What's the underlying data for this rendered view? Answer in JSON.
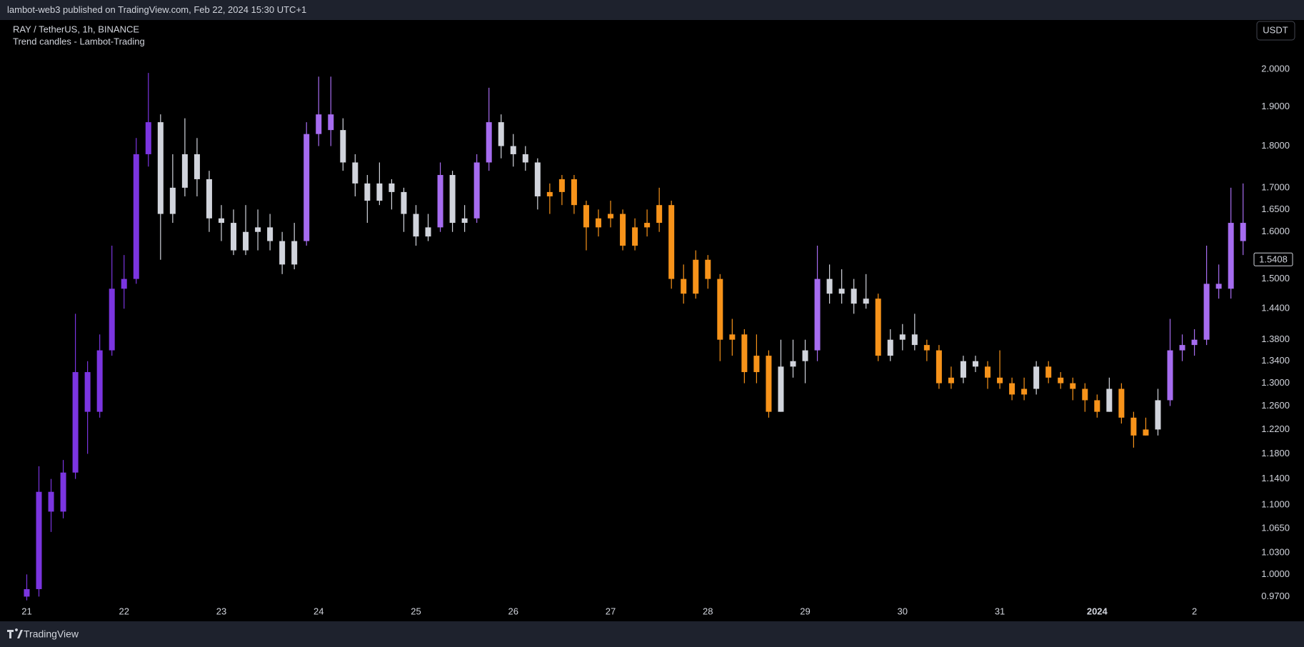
{
  "header": {
    "published": "lambot-web3 published on TradingView.com, Feb 22, 2024 15:30 UTC+1",
    "currency": "USDT"
  },
  "footer": {
    "brand": "TradingView"
  },
  "chart_data": {
    "type": "candlestick",
    "title": "RAY / TetherUS, 1h, BINANCE",
    "subtitle": "Trend candles - Lambot-Trading",
    "log": true,
    "grid": false,
    "xlim": [
      -6.6,
      303.4
    ],
    "xticks": [
      {
        "value": 0,
        "label": "21"
      },
      {
        "value": 24,
        "label": "22"
      },
      {
        "value": 48,
        "label": "23"
      },
      {
        "value": 72,
        "label": "24"
      },
      {
        "value": 96,
        "label": "25"
      },
      {
        "value": 120,
        "label": "26"
      },
      {
        "value": 144,
        "label": "27"
      },
      {
        "value": 168,
        "label": "28"
      },
      {
        "value": 192,
        "label": "29"
      },
      {
        "value": 216,
        "label": "30"
      },
      {
        "value": 240,
        "label": "31"
      },
      {
        "value": 264,
        "label": "2024"
      },
      {
        "value": 288,
        "label": "2"
      }
    ],
    "ylim": [
      0.96,
      2.14
    ],
    "yticks": [
      {
        "value": 2,
        "label": "2.0000"
      },
      {
        "value": 1.9,
        "label": "1.9000"
      },
      {
        "value": 1.8,
        "label": "1.8000"
      },
      {
        "value": 1.7,
        "label": "1.7000"
      },
      {
        "value": 1.65,
        "label": "1.6500"
      },
      {
        "value": 1.6,
        "label": "1.6000"
      },
      {
        "value": 1.5,
        "label": "1.5000"
      },
      {
        "value": 1.44,
        "label": "1.4400"
      },
      {
        "value": 1.38,
        "label": "1.3800"
      },
      {
        "value": 1.34,
        "label": "1.3400"
      },
      {
        "value": 1.3,
        "label": "1.3000"
      },
      {
        "value": 1.26,
        "label": "1.2600"
      },
      {
        "value": 1.22,
        "label": "1.2200"
      },
      {
        "value": 1.18,
        "label": "1.1800"
      },
      {
        "value": 1.14,
        "label": "1.1400"
      },
      {
        "value": 1.1,
        "label": "1.1000"
      },
      {
        "value": 1.065,
        "label": "1.0650"
      },
      {
        "value": 1.03,
        "label": "1.0300"
      },
      {
        "value": 1,
        "label": "1.0000"
      },
      {
        "value": 0.97,
        "label": "0.9700"
      }
    ],
    "last_price": 1.5408,
    "x": [
      0,
      3,
      6,
      9,
      12,
      15,
      18,
      21,
      24,
      27,
      30,
      33,
      36,
      39,
      42,
      45,
      48,
      51,
      54,
      57,
      60,
      63,
      66,
      69,
      72,
      75,
      78,
      81,
      84,
      87,
      90,
      93,
      96,
      99,
      102,
      105,
      108,
      111,
      114,
      117,
      120,
      123,
      126,
      129,
      132,
      135,
      138,
      141,
      144,
      147,
      150,
      153,
      156,
      159,
      162,
      165,
      168,
      171,
      174,
      177,
      180,
      183,
      186,
      189,
      192,
      195,
      198,
      201,
      204,
      207,
      210,
      213,
      216,
      219,
      222,
      225,
      228,
      231,
      234,
      237,
      240,
      243,
      246,
      249,
      252,
      255,
      258,
      261,
      264,
      267,
      270,
      273,
      276,
      279,
      282,
      285,
      288,
      291,
      294,
      297,
      300
    ],
    "open": [
      0.97,
      0.98,
      1.12,
      1.09,
      1.15,
      1.32,
      1.25,
      1.36,
      1.48,
      1.5,
      1.78,
      1.86,
      1.64,
      1.7,
      1.78,
      1.72,
      1.63,
      1.62,
      1.56,
      1.6,
      1.61,
      1.58,
      1.53,
      1.58,
      1.83,
      1.88,
      1.84,
      1.76,
      1.71,
      1.67,
      1.71,
      1.69,
      1.64,
      1.59,
      1.61,
      1.73,
      1.62,
      1.63,
      1.76,
      1.86,
      1.8,
      1.78,
      1.76,
      1.68,
      1.69,
      1.72,
      1.66,
      1.61,
      1.63,
      1.64,
      1.57,
      1.61,
      1.62,
      1.66,
      1.5,
      1.47,
      1.54,
      1.5,
      1.38,
      1.39,
      1.32,
      1.35,
      1.25,
      1.33,
      1.34,
      1.36,
      1.5,
      1.47,
      1.48,
      1.45,
      1.46,
      1.35,
      1.38,
      1.39,
      1.37,
      1.36,
      1.3,
      1.31,
      1.34,
      1.33,
      1.31,
      1.3,
      1.28,
      1.29,
      1.33,
      1.31,
      1.3,
      1.29,
      1.27,
      1.25,
      1.29,
      1.24,
      1.21,
      1.22,
      1.27,
      1.36,
      1.37,
      1.38,
      1.49,
      1.48,
      1.62
    ],
    "high": [
      1.0,
      1.16,
      1.14,
      1.17,
      1.43,
      1.34,
      1.39,
      1.57,
      1.55,
      1.82,
      1.99,
      1.88,
      1.78,
      1.87,
      1.82,
      1.74,
      1.66,
      1.65,
      1.66,
      1.65,
      1.64,
      1.6,
      1.62,
      1.86,
      1.98,
      1.98,
      1.87,
      1.78,
      1.73,
      1.76,
      1.72,
      1.7,
      1.66,
      1.64,
      1.76,
      1.74,
      1.66,
      1.78,
      1.95,
      1.88,
      1.83,
      1.8,
      1.77,
      1.71,
      1.73,
      1.73,
      1.67,
      1.65,
      1.67,
      1.65,
      1.63,
      1.65,
      1.7,
      1.67,
      1.53,
      1.56,
      1.55,
      1.51,
      1.42,
      1.4,
      1.39,
      1.36,
      1.38,
      1.38,
      1.38,
      1.57,
      1.53,
      1.52,
      1.5,
      1.51,
      1.47,
      1.4,
      1.41,
      1.43,
      1.38,
      1.37,
      1.33,
      1.35,
      1.35,
      1.34,
      1.36,
      1.31,
      1.31,
      1.34,
      1.34,
      1.32,
      1.31,
      1.3,
      1.28,
      1.31,
      1.3,
      1.25,
      1.24,
      1.29,
      1.42,
      1.39,
      1.4,
      1.57,
      1.53,
      1.7,
      1.71
    ],
    "low": [
      0.965,
      0.97,
      1.06,
      1.08,
      1.14,
      1.18,
      1.24,
      1.35,
      1.44,
      1.49,
      1.75,
      1.54,
      1.62,
      1.68,
      1.68,
      1.6,
      1.58,
      1.55,
      1.55,
      1.56,
      1.56,
      1.51,
      1.52,
      1.57,
      1.8,
      1.8,
      1.74,
      1.68,
      1.62,
      1.66,
      1.65,
      1.6,
      1.57,
      1.58,
      1.6,
      1.6,
      1.6,
      1.62,
      1.74,
      1.77,
      1.75,
      1.74,
      1.65,
      1.64,
      1.66,
      1.64,
      1.56,
      1.59,
      1.61,
      1.56,
      1.56,
      1.59,
      1.6,
      1.48,
      1.45,
      1.46,
      1.48,
      1.34,
      1.35,
      1.3,
      1.3,
      1.24,
      1.25,
      1.31,
      1.3,
      1.34,
      1.45,
      1.45,
      1.43,
      1.44,
      1.34,
      1.34,
      1.36,
      1.36,
      1.34,
      1.29,
      1.29,
      1.3,
      1.32,
      1.29,
      1.29,
      1.27,
      1.27,
      1.28,
      1.3,
      1.29,
      1.27,
      1.25,
      1.24,
      1.25,
      1.23,
      1.19,
      1.21,
      1.21,
      1.26,
      1.34,
      1.35,
      1.37,
      1.46,
      1.46,
      1.55
    ],
    "close": [
      0.98,
      1.12,
      1.09,
      1.15,
      1.32,
      1.25,
      1.36,
      1.48,
      1.5,
      1.78,
      1.86,
      1.64,
      1.7,
      1.78,
      1.72,
      1.63,
      1.62,
      1.56,
      1.6,
      1.61,
      1.58,
      1.53,
      1.58,
      1.83,
      1.88,
      1.84,
      1.76,
      1.71,
      1.67,
      1.71,
      1.69,
      1.64,
      1.59,
      1.61,
      1.73,
      1.62,
      1.63,
      1.76,
      1.86,
      1.8,
      1.78,
      1.76,
      1.68,
      1.69,
      1.72,
      1.66,
      1.61,
      1.63,
      1.64,
      1.57,
      1.61,
      1.62,
      1.66,
      1.5,
      1.47,
      1.54,
      1.5,
      1.38,
      1.39,
      1.32,
      1.35,
      1.25,
      1.33,
      1.34,
      1.36,
      1.5,
      1.47,
      1.48,
      1.45,
      1.46,
      1.35,
      1.38,
      1.39,
      1.37,
      1.36,
      1.3,
      1.31,
      1.34,
      1.33,
      1.31,
      1.3,
      1.28,
      1.29,
      1.33,
      1.31,
      1.3,
      1.29,
      1.27,
      1.25,
      1.29,
      1.24,
      1.21,
      1.22,
      1.27,
      1.36,
      1.37,
      1.38,
      1.49,
      1.48,
      1.62,
      1.58
    ],
    "colors": [
      "#7b35e0",
      "#7b35e0",
      "#7b35e0",
      "#7b35e0",
      "#7b35e0",
      "#7b35e0",
      "#7b35e0",
      "#7b35e0",
      "#7b35e0",
      "#7b35e0",
      "#7b35e0",
      "#d1d4dc",
      "#d1d4dc",
      "#d1d4dc",
      "#d1d4dc",
      "#d1d4dc",
      "#d1d4dc",
      "#d1d4dc",
      "#d1d4dc",
      "#d1d4dc",
      "#d1d4dc",
      "#d1d4dc",
      "#d1d4dc",
      "#a66cf0",
      "#a66cf0",
      "#a66cf0",
      "#d1d4dc",
      "#d1d4dc",
      "#d1d4dc",
      "#d1d4dc",
      "#d1d4dc",
      "#d1d4dc",
      "#d1d4dc",
      "#d1d4dc",
      "#a66cf0",
      "#d1d4dc",
      "#d1d4dc",
      "#a66cf0",
      "#a66cf0",
      "#d1d4dc",
      "#d1d4dc",
      "#d1d4dc",
      "#d1d4dc",
      "#f7931a",
      "#f7931a",
      "#f7931a",
      "#f7931a",
      "#f7931a",
      "#f7931a",
      "#f7931a",
      "#f7931a",
      "#f7931a",
      "#f7931a",
      "#f7931a",
      "#f7931a",
      "#f7931a",
      "#f7931a",
      "#f7931a",
      "#f7931a",
      "#f7931a",
      "#f7931a",
      "#f7931a",
      "#d1d4dc",
      "#d1d4dc",
      "#d1d4dc",
      "#a66cf0",
      "#d1d4dc",
      "#d1d4dc",
      "#d1d4dc",
      "#d1d4dc",
      "#f7931a",
      "#d1d4dc",
      "#d1d4dc",
      "#d1d4dc",
      "#f7931a",
      "#f7931a",
      "#f7931a",
      "#d1d4dc",
      "#d1d4dc",
      "#f7931a",
      "#f7931a",
      "#f7931a",
      "#f7931a",
      "#d1d4dc",
      "#f7931a",
      "#f7931a",
      "#f7931a",
      "#f7931a",
      "#f7931a",
      "#d1d4dc",
      "#f7931a",
      "#f7931a",
      "#f7931a",
      "#d1d4dc",
      "#a66cf0",
      "#a66cf0",
      "#a66cf0",
      "#a66cf0",
      "#a66cf0",
      "#a66cf0",
      "#a66cf0"
    ]
  }
}
